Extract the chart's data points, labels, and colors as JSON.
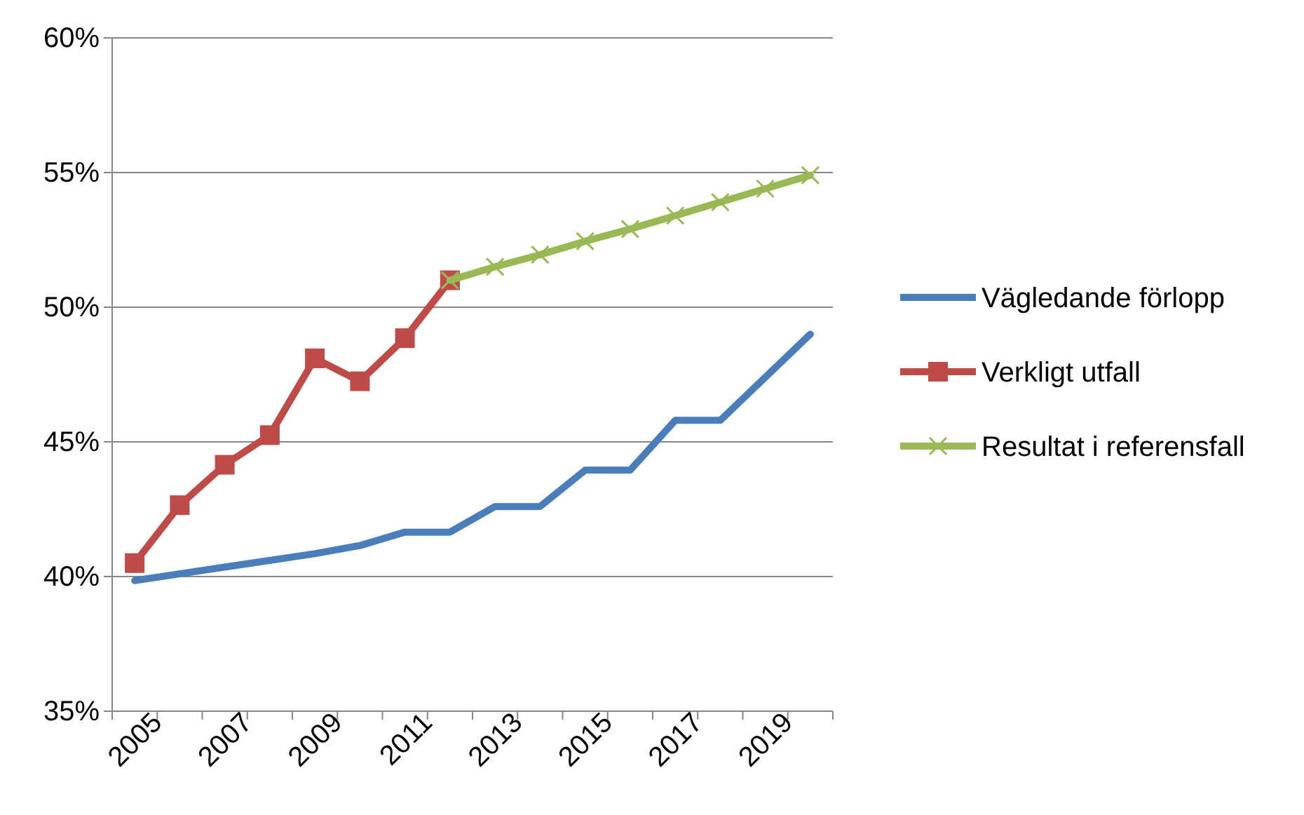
{
  "chart_data": {
    "type": "line",
    "categories": [
      "2005",
      null,
      "2007",
      null,
      "2009",
      null,
      "2011",
      null,
      "2013",
      null,
      "2015",
      null,
      "2017",
      null,
      "2019",
      null
    ],
    "ylim": [
      35,
      60
    ],
    "yticks": [
      {
        "value": 35,
        "label": "35%"
      },
      {
        "value": 40,
        "label": "40%"
      },
      {
        "value": 45,
        "label": "45%"
      },
      {
        "value": 50,
        "label": "50%"
      },
      {
        "value": 55,
        "label": "55%"
      },
      {
        "value": 60,
        "label": "60%"
      }
    ],
    "grid": "y",
    "legend": "right",
    "series": [
      {
        "name": "Vägledande förlopp",
        "color": "#4a7ebb",
        "marker": "none",
        "values": [
          39.85,
          40.1,
          40.35,
          40.6,
          40.85,
          41.15,
          41.65,
          41.65,
          42.6,
          42.6,
          43.95,
          43.95,
          45.8,
          45.8,
          47.4,
          49.0
        ]
      },
      {
        "name": "Verkligt utfall",
        "color": "#be4b48",
        "marker": "square",
        "values": [
          40.5,
          42.65,
          44.15,
          45.25,
          48.1,
          47.25,
          48.85,
          51.0,
          null,
          null,
          null,
          null,
          null,
          null,
          null,
          null
        ]
      },
      {
        "name": "Resultat i referensfall",
        "color": "#98b954",
        "marker": "cross",
        "values": [
          null,
          null,
          null,
          null,
          null,
          null,
          null,
          51.0,
          51.5,
          51.95,
          52.45,
          52.9,
          53.4,
          53.9,
          54.4,
          54.9
        ]
      }
    ]
  }
}
